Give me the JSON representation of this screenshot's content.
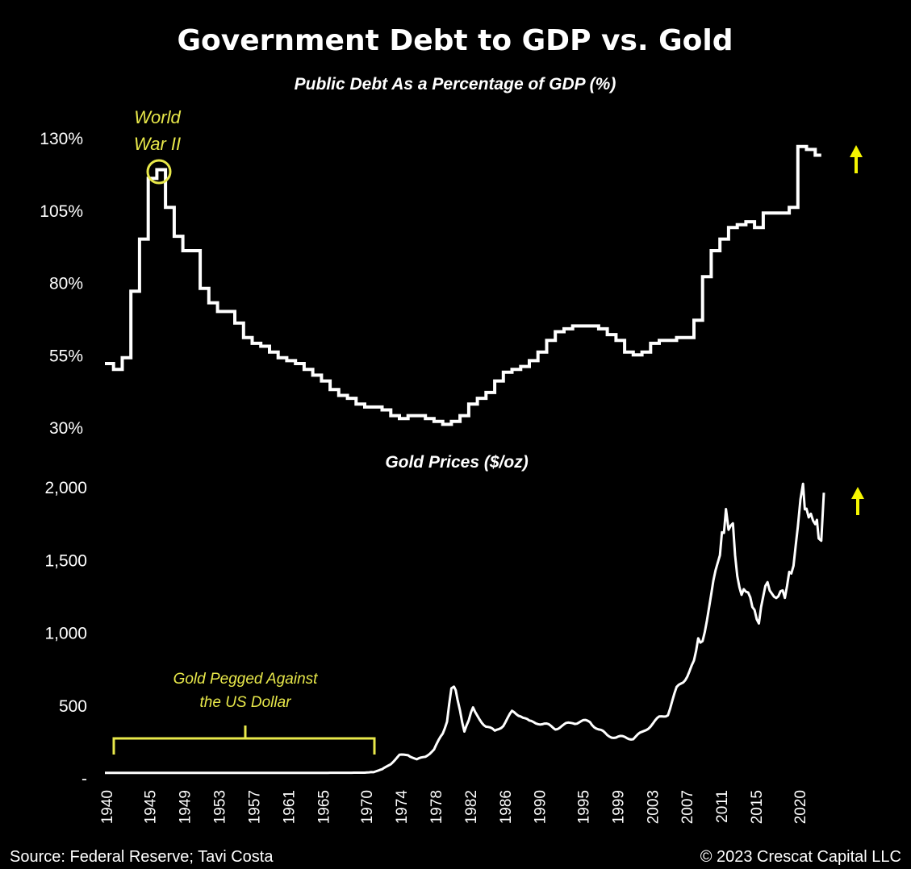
{
  "chart_data": [
    {
      "type": "line",
      "title": "Government Debt to GDP vs. Gold",
      "subtitle": "Public Debt As a Percentage of GDP (%)",
      "ylim": [
        30,
        130
      ],
      "y_ticks": [
        "130%",
        "105%",
        "80%",
        "55%",
        "30%"
      ],
      "y_tick_values": [
        130,
        105,
        80,
        55,
        30
      ],
      "series": [
        {
          "x": [
            1940,
            1941,
            1942,
            1943,
            1944,
            1945,
            1946,
            1947,
            1948,
            1949,
            1950,
            1951,
            1952,
            1953,
            1954,
            1955,
            1956,
            1957,
            1958,
            1959,
            1960,
            1961,
            1962,
            1963,
            1964,
            1965,
            1966,
            1967,
            1968,
            1969,
            1970,
            1971,
            1972,
            1973,
            1974,
            1975,
            1976,
            1977,
            1978,
            1979,
            1980,
            1981,
            1982,
            1983,
            1984,
            1985,
            1986,
            1987,
            1988,
            1989,
            1990,
            1991,
            1992,
            1993,
            1994,
            1995,
            1996,
            1997,
            1998,
            1999,
            2000,
            2001,
            2002,
            2003,
            2004,
            2005,
            2006,
            2007,
            2008,
            2009,
            2010,
            2011,
            2012,
            2013,
            2014,
            2015,
            2016,
            2017,
            2018,
            2019,
            2020,
            2021,
            2022
          ],
          "values": [
            52,
            50,
            54,
            77,
            95,
            116,
            119,
            106,
            96,
            91,
            91,
            78,
            73,
            70,
            70,
            66,
            61,
            59,
            58,
            56,
            54,
            53,
            52,
            50,
            48,
            46,
            43,
            41,
            40,
            38,
            37,
            37,
            36,
            34,
            33,
            34,
            34,
            33,
            32,
            31,
            32,
            34,
            38,
            40,
            42,
            46,
            49,
            50,
            51,
            53,
            56,
            60,
            63,
            64,
            65,
            65,
            65,
            64,
            62,
            60,
            56,
            55,
            56,
            59,
            60,
            60,
            61,
            61,
            67,
            82,
            91,
            95,
            99,
            100,
            101,
            99,
            104,
            104,
            104,
            106,
            127,
            126,
            124
          ]
        }
      ],
      "annotations": [
        "World",
        "War II"
      ]
    },
    {
      "type": "line",
      "subtitle": "Gold Prices ($/oz)",
      "ylim": [
        0,
        2000
      ],
      "y_ticks": [
        "2,000",
        "1,500",
        "1,000",
        "500",
        "-"
      ],
      "y_tick_values": [
        2000,
        1500,
        1000,
        500,
        0
      ],
      "x_ticks": [
        "1940",
        "1945",
        "1949",
        "1953",
        "1957",
        "1961",
        "1965",
        "1970",
        "1974",
        "1978",
        "1982",
        "1986",
        "1990",
        "1995",
        "1999",
        "2003",
        "2007",
        "2011",
        "2015",
        "2020"
      ],
      "series": [
        {
          "x": [
            1940,
            1945,
            1950,
            1955,
            1960,
            1965,
            1970,
            1971,
            1972,
            1973,
            1974,
            1975,
            1976,
            1977,
            1978,
            1979,
            1979.5,
            1980,
            1980.3,
            1980.7,
            1981,
            1981.5,
            1982,
            1982.5,
            1983,
            1984,
            1985,
            1986,
            1987,
            1988,
            1989,
            1990,
            1991,
            1992,
            1993,
            1994,
            1995,
            1996,
            1997,
            1998,
            1999,
            2000,
            2001,
            2002,
            2003,
            2004,
            2005,
            2006,
            2007,
            2008,
            2008.5,
            2009,
            2010,
            2011,
            2011.7,
            2012,
            2012.5,
            2013,
            2013.5,
            2014,
            2014.5,
            2015,
            2015.5,
            2016,
            2016.5,
            2017,
            2018,
            2018.5,
            2019,
            2019.5,
            2020,
            2020.6,
            2021,
            2021.5,
            2022,
            2022.4,
            2022.7,
            2023
          ],
          "values": [
            35,
            35,
            35,
            35,
            35,
            35,
            36,
            41,
            58,
            97,
            154,
            160,
            125,
            148,
            193,
            307,
            400,
            615,
            650,
            560,
            460,
            330,
            400,
            470,
            420,
            360,
            317,
            368,
            447,
            437,
            381,
            383,
            362,
            343,
            359,
            384,
            384,
            388,
            331,
            294,
            279,
            279,
            271,
            310,
            363,
            410,
            445,
            604,
            695,
            780,
            950,
            972,
            1225,
            1571,
            1800,
            1669,
            1700,
            1411,
            1300,
            1266,
            1200,
            1160,
            1100,
            1250,
            1300,
            1257,
            1300,
            1200,
            1390,
            1500,
            1770,
            1970,
            1800,
            1850,
            1800,
            1700,
            1650,
            1960
          ]
        }
      ],
      "annotations": [
        "Gold Pegged Against",
        "the US Dollar"
      ]
    }
  ],
  "footer": {
    "source": "Source: Federal Reserve; Tavi Costa",
    "copyright": "© 2023 Crescat Capital LLC"
  },
  "colors": {
    "background": "#000000",
    "line": "#ffffff",
    "annotation": "#e8e84a"
  }
}
